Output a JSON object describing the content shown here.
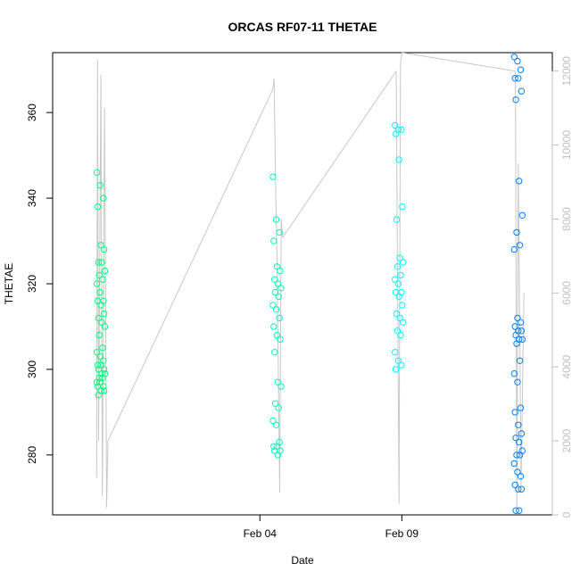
{
  "chart_data": {
    "type": "scatter",
    "title": "ORCAS RF07-11 THETAE",
    "xlabel": "Date",
    "ylabel": "THETAE",
    "x_ticks": [
      "Feb 04",
      "Feb 09"
    ],
    "y_ticks": [
      280,
      300,
      320,
      340,
      360
    ],
    "y2_ticks": [
      0,
      2000,
      4000,
      6000,
      8000,
      10000,
      12000
    ],
    "xlim_days": [
      -3.3,
      14.3
    ],
    "ylim": [
      266,
      374
    ],
    "y2lim": [
      0,
      12500
    ],
    "colors": {
      "RF07": "#00ff80",
      "RF08": "#00ffc0",
      "RF09": "#00ffff",
      "RF10": "#00c0ff",
      "RF11": "#0080ff",
      "altitude_line": "#c8c8c8",
      "right_axis": "#c0c0c0"
    },
    "series": [
      {
        "day": -1.6,
        "color": "RF07",
        "values": [
          346,
          343,
          340,
          338,
          329,
          328,
          325,
          325,
          323,
          322,
          321,
          320,
          318,
          316,
          316,
          315,
          313,
          312,
          311,
          310,
          308,
          305,
          304,
          303,
          302,
          301,
          301,
          300,
          300,
          299,
          299,
          298,
          298,
          297,
          297,
          296,
          296,
          295,
          295,
          294
        ]
      },
      {
        "day": 4.6,
        "color": "RF08",
        "values": [
          345,
          335,
          332,
          330,
          324,
          323,
          321,
          320,
          319,
          318,
          317,
          315,
          314,
          312,
          310,
          308,
          307,
          304,
          297,
          296,
          292,
          291,
          288,
          287,
          283,
          282,
          282,
          281,
          281,
          280
        ]
      },
      {
        "day": 8.9,
        "color": "RF09",
        "values": [
          357,
          356,
          356,
          355,
          349,
          338,
          335,
          326,
          325,
          324,
          322,
          321,
          320,
          318,
          318,
          317,
          315,
          313,
          312,
          311,
          309,
          308,
          304,
          302,
          301,
          300
        ]
      },
      {
        "day": 13.1,
        "color": "RF11",
        "values": [
          373,
          372,
          370,
          368,
          368,
          365,
          363,
          344,
          336,
          332,
          329,
          328,
          312,
          311,
          310,
          309,
          309,
          308,
          307,
          307,
          306,
          302,
          299,
          297,
          291,
          290,
          287,
          285,
          284,
          283,
          281,
          280,
          280,
          278,
          276,
          275,
          273,
          272,
          272,
          267,
          267
        ]
      }
    ],
    "altitude_segments": [
      [
        [
          -1.75,
          1000
        ],
        [
          -1.72,
          12300
        ],
        [
          -1.68,
          2000
        ],
        [
          -1.6,
          11900
        ],
        [
          -1.55,
          500
        ],
        [
          -1.47,
          11000
        ],
        [
          -1.4,
          200
        ],
        [
          -1.35,
          2000
        ]
      ],
      [
        [
          4.45,
          11500
        ],
        [
          4.5,
          11800
        ],
        [
          4.55,
          9000
        ],
        [
          4.6,
          7000
        ],
        [
          4.7,
          600
        ],
        [
          4.75,
          8000
        ],
        [
          4.8,
          7500
        ]
      ],
      [
        [
          8.8,
          12000
        ],
        [
          8.9,
          300
        ],
        [
          8.95,
          12200
        ],
        [
          9.0,
          12500
        ]
      ],
      [
        [
          13.0,
          12000
        ],
        [
          13.05,
          200
        ],
        [
          13.1,
          9500
        ],
        [
          13.2,
          800
        ],
        [
          13.3,
          6000
        ]
      ]
    ],
    "altitude_connectors": [
      [
        [
          -1.35,
          2000
        ],
        [
          4.45,
          11500
        ]
      ],
      [
        [
          4.8,
          7500
        ],
        [
          8.8,
          12000
        ]
      ],
      [
        [
          9.0,
          12500
        ],
        [
          13.0,
          12000
        ]
      ]
    ]
  }
}
